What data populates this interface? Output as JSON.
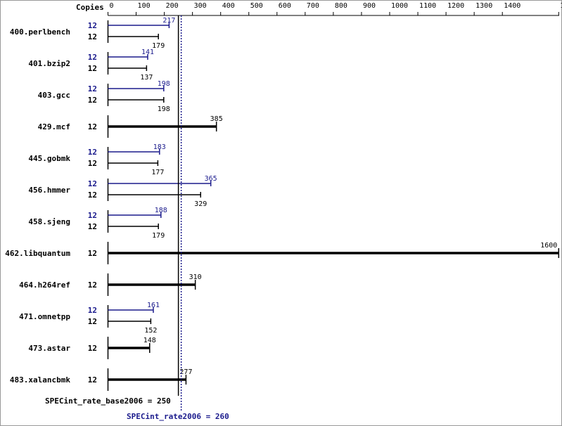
{
  "chart_data": {
    "type": "bar",
    "orientation": "horizontal",
    "copies_header": "Copies",
    "axis_ticks": [
      0,
      100,
      200,
      300,
      400,
      500,
      600,
      700,
      800,
      900,
      1000,
      1100,
      1200,
      1300,
      1400,
      1600
    ],
    "xlim": [
      0,
      1600
    ],
    "colors": {
      "peak": "#1a1a8c",
      "base": "#000000"
    },
    "benchmarks": [
      {
        "name": "400.perlbench",
        "copies_peak": "12",
        "copies_base": "12",
        "peak": 217,
        "base": 179
      },
      {
        "name": "401.bzip2",
        "copies_peak": "12",
        "copies_base": "12",
        "peak": 141,
        "base": 137
      },
      {
        "name": "403.gcc",
        "copies_peak": "12",
        "copies_base": "12",
        "peak": 198,
        "base": 198
      },
      {
        "name": "429.mcf",
        "copies_base": "12",
        "base": 385
      },
      {
        "name": "445.gobmk",
        "copies_peak": "12",
        "copies_base": "12",
        "peak": 183,
        "base": 177
      },
      {
        "name": "456.hmmer",
        "copies_peak": "12",
        "copies_base": "12",
        "peak": 365,
        "base": 329
      },
      {
        "name": "458.sjeng",
        "copies_peak": "12",
        "copies_base": "12",
        "peak": 188,
        "base": 179
      },
      {
        "name": "462.libquantum",
        "copies_base": "12",
        "base": 1600
      },
      {
        "name": "464.h264ref",
        "copies_base": "12",
        "base": 310
      },
      {
        "name": "471.omnetpp",
        "copies_peak": "12",
        "copies_base": "12",
        "peak": 161,
        "base": 152
      },
      {
        "name": "473.astar",
        "copies_base": "12",
        "base": 148
      },
      {
        "name": "483.xalancbmk",
        "copies_base": "12",
        "base": 277
      }
    ],
    "base_summary": {
      "label": "SPECint_rate_base2006 = 250",
      "value": 250
    },
    "peak_summary": {
      "label": "SPECint_rate2006 = 260",
      "value": 260
    }
  }
}
